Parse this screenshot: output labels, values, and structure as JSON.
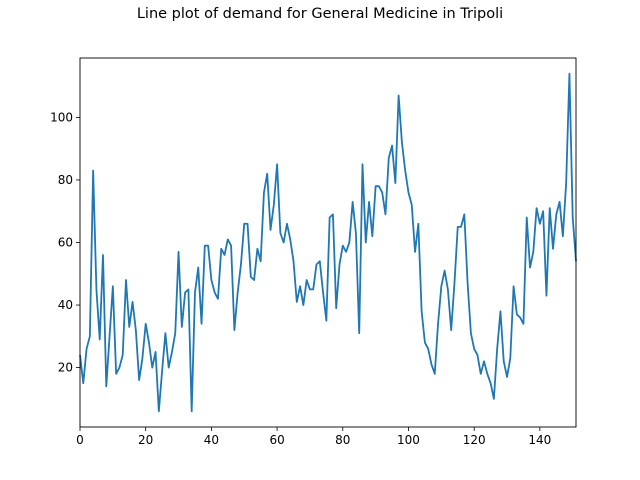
{
  "chart_data": {
    "type": "line",
    "title": "Line plot of demand for General Medicine in Tripoli",
    "xlabel": "",
    "ylabel": "",
    "xlim": [
      0,
      151
    ],
    "ylim": [
      1,
      119
    ],
    "xticks": [
      0,
      20,
      40,
      60,
      80,
      100,
      120,
      140
    ],
    "yticks": [
      20,
      40,
      60,
      80,
      100
    ],
    "grid": false,
    "series": [
      {
        "color": "#1f77b4",
        "x": [
          0,
          1,
          2,
          3,
          4,
          5,
          6,
          7,
          8,
          9,
          10,
          11,
          12,
          13,
          14,
          15,
          16,
          17,
          18,
          19,
          20,
          21,
          22,
          23,
          24,
          25,
          26,
          27,
          28,
          29,
          30,
          31,
          32,
          33,
          34,
          35,
          36,
          37,
          38,
          39,
          40,
          41,
          42,
          43,
          44,
          45,
          46,
          47,
          48,
          49,
          50,
          51,
          52,
          53,
          54,
          55,
          56,
          57,
          58,
          59,
          60,
          61,
          62,
          63,
          64,
          65,
          66,
          67,
          68,
          69,
          70,
          71,
          72,
          73,
          74,
          75,
          76,
          77,
          78,
          79,
          80,
          81,
          82,
          83,
          84,
          85,
          86,
          87,
          88,
          89,
          90,
          91,
          92,
          93,
          94,
          95,
          96,
          97,
          98,
          99,
          100,
          101,
          102,
          103,
          104,
          105,
          106,
          107,
          108,
          109,
          110,
          111,
          112,
          113,
          114,
          115,
          116,
          117,
          118,
          119,
          120,
          121,
          122,
          123,
          124,
          125,
          126,
          127,
          128,
          129,
          130,
          131,
          132,
          133,
          134,
          135,
          136,
          137,
          138,
          139,
          140,
          141,
          142,
          143,
          144,
          145,
          146,
          147,
          148,
          149,
          150,
          151
        ],
        "values": [
          24,
          15,
          26,
          30,
          83,
          45,
          29,
          56,
          14,
          30,
          46,
          18,
          20,
          24,
          48,
          33,
          41,
          32,
          16,
          23,
          34,
          28,
          20,
          25,
          6,
          19,
          31,
          20,
          25,
          31,
          57,
          33,
          44,
          45,
          6,
          44,
          52,
          34,
          59,
          59,
          48,
          44,
          42,
          58,
          56,
          61,
          59,
          32,
          44,
          53,
          66,
          66,
          49,
          48,
          58,
          54,
          76,
          82,
          64,
          72,
          85,
          63,
          60,
          66,
          61,
          54,
          41,
          46,
          40,
          48,
          45,
          45,
          53,
          54,
          44,
          35,
          68,
          69,
          39,
          53,
          59,
          57,
          60,
          73,
          63,
          31,
          85,
          60,
          73,
          62,
          78,
          78,
          76,
          69,
          87,
          91,
          79,
          107,
          92,
          83,
          76,
          72,
          57,
          66,
          38,
          28,
          26,
          21,
          18,
          34,
          46,
          51,
          45,
          32,
          47,
          65,
          65,
          69,
          47,
          31,
          26,
          24,
          18,
          22,
          18,
          15,
          10,
          26,
          38,
          22,
          17,
          23,
          46,
          37,
          36,
          34,
          68,
          52,
          57,
          71,
          66,
          70,
          43,
          71,
          58,
          69,
          73,
          62,
          79,
          114,
          68,
          54
        ]
      }
    ]
  }
}
